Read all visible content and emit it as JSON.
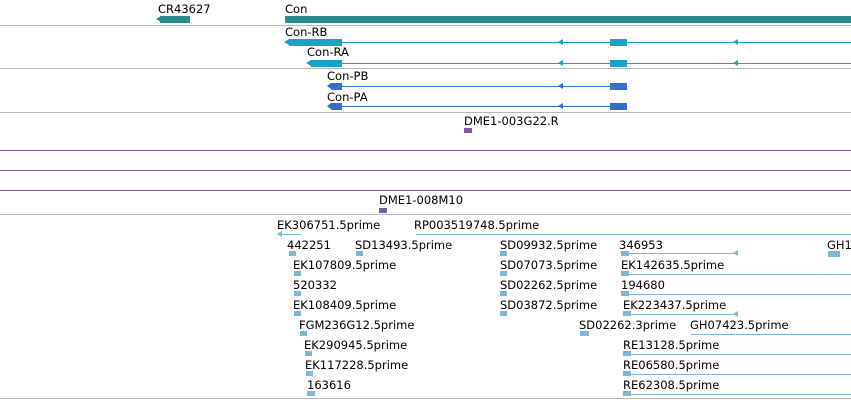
{
  "colors": {
    "gene": "#2e8b8b",
    "transcript_rb_ra": "#1aa3c2",
    "transcript_pb_pa": "#2f6fcf",
    "oligo": "#7a5aa8",
    "est": "#7fb7d6",
    "separator_grey": "#b8b8b8",
    "separator_purple": "#7a5a8a"
  },
  "tracks": {
    "genes": {
      "labels": [
        "CR43627",
        "Con"
      ]
    },
    "transcripts_r": {
      "labels": [
        "Con-RB",
        "Con-RA"
      ]
    },
    "transcripts_p": {
      "labels": [
        "Con-PB",
        "Con-PA"
      ]
    },
    "oligo1": {
      "labels": [
        "DME1-003G22.R"
      ]
    },
    "oligo2": {
      "labels": [
        "DME1-008M10"
      ]
    },
    "ests": {
      "labels": [
        "EK306751.5prime",
        "RP003519748.5prime",
        "442251",
        "SD13493.5prime",
        "SD09932.5prime",
        "346953",
        "GH1",
        "EK107809.5prime",
        "SD07073.5prime",
        "EK142635.5prime",
        "520332",
        "SD02262.5prime",
        "194680",
        "EK108409.5prime",
        "SD03872.5prime",
        "EK223437.5prime",
        "FGM236G12.5prime",
        "SD02262.3prime",
        "GH07423.5prime",
        "EK290945.5prime",
        "RE13128.5prime",
        "EK117228.5prime",
        "RE06580.5prime",
        "163616",
        "RE62308.5prime"
      ]
    }
  }
}
